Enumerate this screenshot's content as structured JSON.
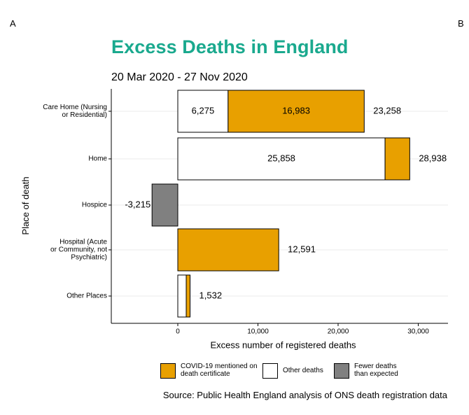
{
  "panels": {
    "left": "A",
    "right": "B"
  },
  "chart_data": {
    "type": "bar",
    "orientation": "horizontal",
    "stacked": true,
    "title": "Excess Deaths in England",
    "subtitle": "20 Mar 2020 - 27 Nov 2020",
    "xlabel": "Excess number of registered deaths",
    "ylabel": "Place of death",
    "xlim": [
      -8500,
      34000
    ],
    "xticks": [
      0,
      10000,
      20000,
      30000
    ],
    "xtick_labels": [
      "0",
      "10,000",
      "20,000",
      "30,000"
    ],
    "grid": "horizontal-only",
    "legend_position": "bottom",
    "colors": {
      "covid": "#e8a000",
      "other": "#ffffff",
      "fewer": "#808080"
    },
    "categories": [
      {
        "label": [
          "Care Home (Nursing",
          "or Residential)"
        ],
        "other": 6275,
        "covid": 16983,
        "fewer": 0,
        "segment_labels": {
          "other": "6,275",
          "covid": "16,983"
        },
        "total_label": "23,258"
      },
      {
        "label": [
          "Home"
        ],
        "other": 25858,
        "covid": 3080,
        "fewer": 0,
        "segment_labels": {
          "other": "25,858"
        },
        "total_label": "28,938"
      },
      {
        "label": [
          "Hospice"
        ],
        "other": 0,
        "covid": 0,
        "fewer": -3215,
        "segment_labels": {},
        "total_label": "-3,215"
      },
      {
        "label": [
          "Hospital (Acute",
          "or Community, not",
          "Psychiatric)"
        ],
        "other": 0,
        "covid": 12591,
        "fewer": 0,
        "segment_labels": {},
        "total_label": "12,591"
      },
      {
        "label": [
          "Other Places"
        ],
        "other": 1050,
        "covid": 482,
        "fewer": 0,
        "segment_labels": {},
        "total_label": "1,532"
      }
    ]
  },
  "legend": {
    "covid": "COVID-19 mentioned on death certificate",
    "other": "Other deaths",
    "fewer": "Fewer deaths than expected"
  },
  "source": "Source: Public Health England analysis of ONS death registration data"
}
